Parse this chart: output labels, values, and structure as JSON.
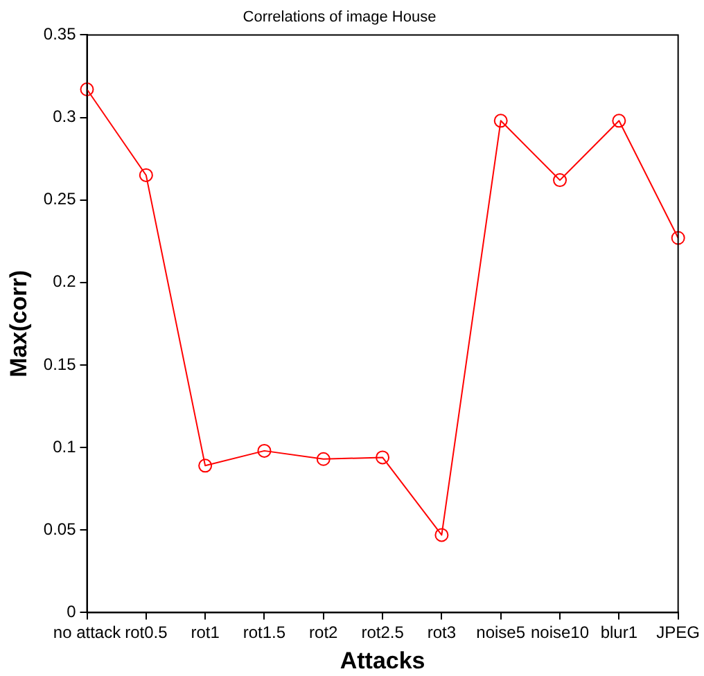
{
  "chart_data": {
    "type": "line",
    "title": "Correlations of image House",
    "xlabel": "Attacks",
    "ylabel": "Max(corr)",
    "categories": [
      "no attack",
      "rot0.5",
      "rot1",
      "rot1.5",
      "rot2",
      "rot2.5",
      "rot3",
      "noise5",
      "noise10",
      "blur1",
      "JPEG"
    ],
    "series": [
      {
        "color": "#ff0000",
        "values": [
          0.317,
          0.265,
          0.089,
          0.098,
          0.093,
          0.094,
          0.047,
          0.298,
          0.262,
          0.298,
          0.227
        ]
      }
    ],
    "ylim": [
      0,
      0.35
    ],
    "yticks": [
      0,
      0.05,
      0.1,
      0.15,
      0.2,
      0.25,
      0.3,
      0.35
    ],
    "grid": false,
    "legend": false,
    "marker": "circle",
    "line_style": "solid"
  }
}
